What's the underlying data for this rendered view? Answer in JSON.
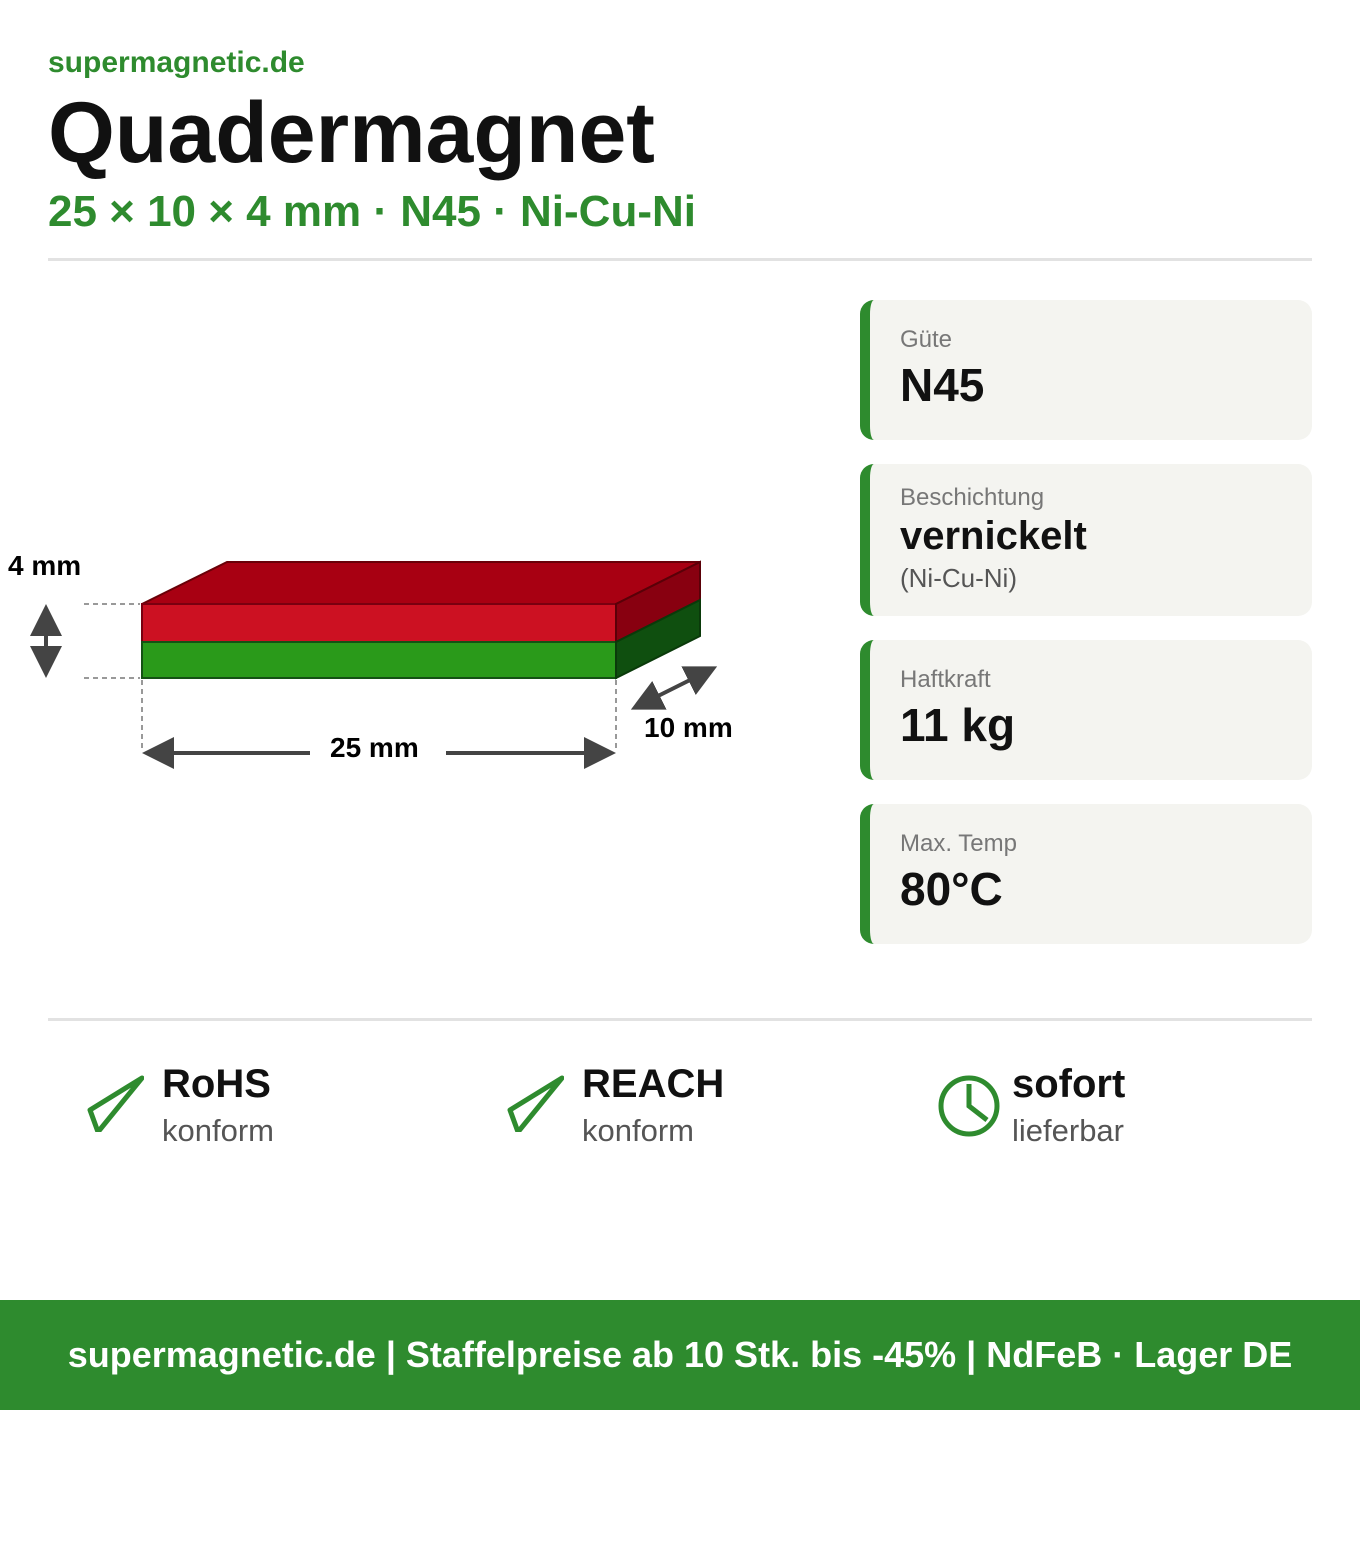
{
  "brand": "supermagnetic.de",
  "title": "Quadermagnet",
  "subtitle": "25 × 10 × 4 mm · N45 · Ni-Cu-Ni",
  "diagram": {
    "height_label": "4 mm",
    "length_label": "25 mm",
    "depth_label": "10 mm",
    "colors": {
      "north": "#cc1122",
      "south": "#2a9a1a"
    }
  },
  "specs": [
    {
      "label": "Güte",
      "value": "N45"
    },
    {
      "label": "Beschichtung",
      "value": "vernickelt",
      "note": "(Ni-Cu-Ni)"
    },
    {
      "label": "Haftkraft",
      "value": "11 kg"
    },
    {
      "label": "Max. Temp",
      "value": "80°C"
    }
  ],
  "badges": [
    {
      "icon": "check-icon",
      "title": "RoHS",
      "sub": "konform"
    },
    {
      "icon": "check-icon",
      "title": "REACH",
      "sub": "konform"
    },
    {
      "icon": "clock-icon",
      "title": "sofort",
      "sub": "lieferbar"
    }
  ],
  "footer": "supermagnetic.de | Staffelpreise ab 10 Stk. bis -45% | NdFeB · Lager DE",
  "accent": "#2e8b2e"
}
